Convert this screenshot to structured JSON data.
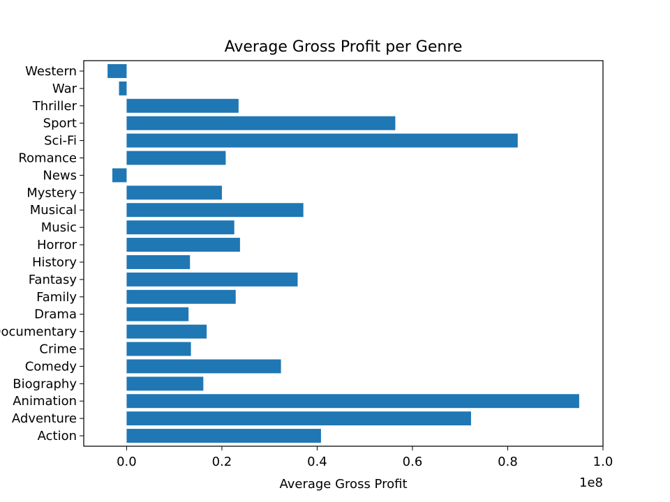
{
  "chart_data": {
    "type": "bar",
    "orientation": "horizontal",
    "title": "Average Gross Profit per Genre",
    "xlabel": "Average Gross Profit",
    "ylabel": "",
    "offset_text": "1e8",
    "scale_factor": 100000000,
    "xlim": [
      -9000000,
      100000000
    ],
    "xticks": [
      0,
      20000000,
      40000000,
      60000000,
      80000000,
      100000000
    ],
    "xtick_labels": [
      "0.0",
      "0.2",
      "0.4",
      "0.6",
      "0.8",
      "1.0"
    ],
    "grid": false,
    "bar_color": "#1f77b4",
    "categories": [
      "Action",
      "Adventure",
      "Animation",
      "Biography",
      "Comedy",
      "Crime",
      "Documentary",
      "Drama",
      "Family",
      "Fantasy",
      "History",
      "Horror",
      "Music",
      "Musical",
      "Mystery",
      "News",
      "Romance",
      "Sci-Fi",
      "Sport",
      "Thriller",
      "War",
      "Western"
    ],
    "values": [
      40800000,
      72300000,
      95000000,
      16100000,
      32400000,
      13500000,
      16800000,
      13000000,
      22900000,
      35900000,
      13300000,
      23800000,
      22600000,
      37100000,
      20000000,
      -3000000,
      20800000,
      82100000,
      56400000,
      23500000,
      -1600000,
      -4000000
    ]
  }
}
